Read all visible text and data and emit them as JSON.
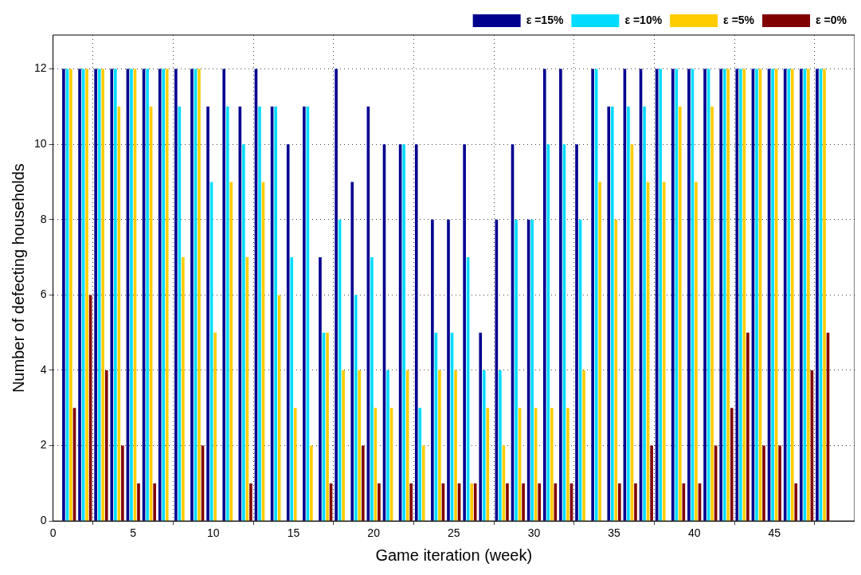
{
  "chart_data": {
    "type": "bar",
    "xlabel": "Game iteration (week)",
    "ylabel": "Number of defecting households",
    "x": [
      1,
      2,
      3,
      4,
      5,
      6,
      7,
      8,
      9,
      10,
      11,
      12,
      13,
      14,
      15,
      16,
      17,
      18,
      19,
      20,
      21,
      22,
      23,
      24,
      25,
      26,
      27,
      28,
      29,
      30,
      31,
      32,
      33,
      34,
      35,
      36,
      37,
      38,
      39,
      40,
      41,
      42,
      43,
      44,
      45,
      46,
      47,
      48
    ],
    "series": [
      {
        "name": "ε =15%",
        "color": "#00008f",
        "values": [
          12,
          12,
          12,
          12,
          12,
          12,
          12,
          12,
          12,
          11,
          12,
          11,
          12,
          11,
          10,
          11,
          7,
          12,
          9,
          11,
          10,
          10,
          10,
          8,
          8,
          10,
          5,
          8,
          10,
          8,
          12,
          12,
          10,
          12,
          11,
          12,
          12,
          12,
          12,
          12,
          12,
          12,
          12,
          12,
          12,
          12,
          12,
          12
        ]
      },
      {
        "name": "ε =10%",
        "color": "#00dcff",
        "values": [
          12,
          12,
          12,
          12,
          12,
          12,
          12,
          11,
          12,
          9,
          11,
          10,
          11,
          11,
          7,
          11,
          5,
          8,
          6,
          7,
          4,
          10,
          3,
          5,
          5,
          7,
          4,
          4,
          8,
          8,
          10,
          10,
          8,
          12,
          11,
          11,
          11,
          12,
          12,
          12,
          12,
          12,
          12,
          12,
          12,
          12,
          12,
          12
        ]
      },
      {
        "name": "ε =5%",
        "color": "#ffcc00",
        "values": [
          12,
          12,
          12,
          11,
          12,
          11,
          12,
          7,
          12,
          5,
          9,
          7,
          9,
          6,
          3,
          2,
          5,
          4,
          4,
          3,
          3,
          4,
          2,
          4,
          4,
          1,
          3,
          2,
          3,
          3,
          3,
          3,
          4,
          9,
          8,
          10,
          9,
          9,
          11,
          9,
          11,
          12,
          12,
          12,
          12,
          12,
          12,
          12
        ]
      },
      {
        "name": "ε =0%",
        "color": "#800000",
        "values": [
          3,
          6,
          4,
          2,
          1,
          1,
          0,
          0,
          2,
          0,
          0,
          1,
          0,
          0,
          0,
          0,
          1,
          0,
          2,
          1,
          0,
          1,
          0,
          1,
          1,
          1,
          0,
          1,
          1,
          1,
          1,
          1,
          0,
          0,
          1,
          1,
          2,
          0,
          1,
          1,
          2,
          3,
          5,
          2,
          2,
          1,
          4,
          5
        ]
      }
    ],
    "xlim": [
      0,
      50
    ],
    "xticks": [
      0,
      5,
      10,
      15,
      20,
      25,
      30,
      35,
      40,
      45
    ],
    "ylim": [
      0,
      12.9
    ],
    "yticks": [
      0,
      2,
      4,
      6,
      8,
      10,
      12
    ],
    "grid": true,
    "legend": "top right"
  }
}
